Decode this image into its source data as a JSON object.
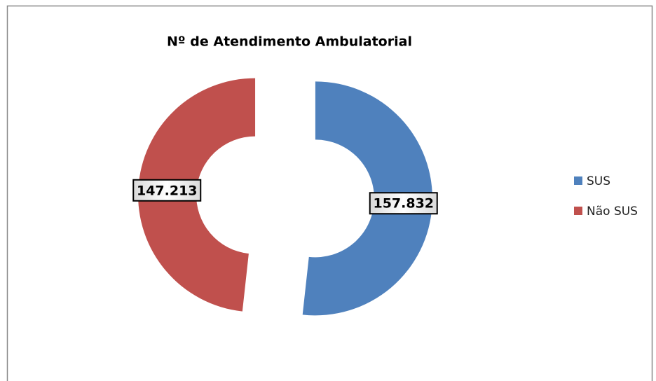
{
  "chart_data": {
    "type": "doughnut",
    "title": "Nº de Atendimento Ambulatorial",
    "categories": [
      "SUS",
      "Não SUS"
    ],
    "values": [
      157832,
      147213
    ],
    "value_labels": [
      "157.832",
      "147.213"
    ],
    "colors": [
      "#4f81bd",
      "#c0504d"
    ],
    "legend": "right"
  }
}
